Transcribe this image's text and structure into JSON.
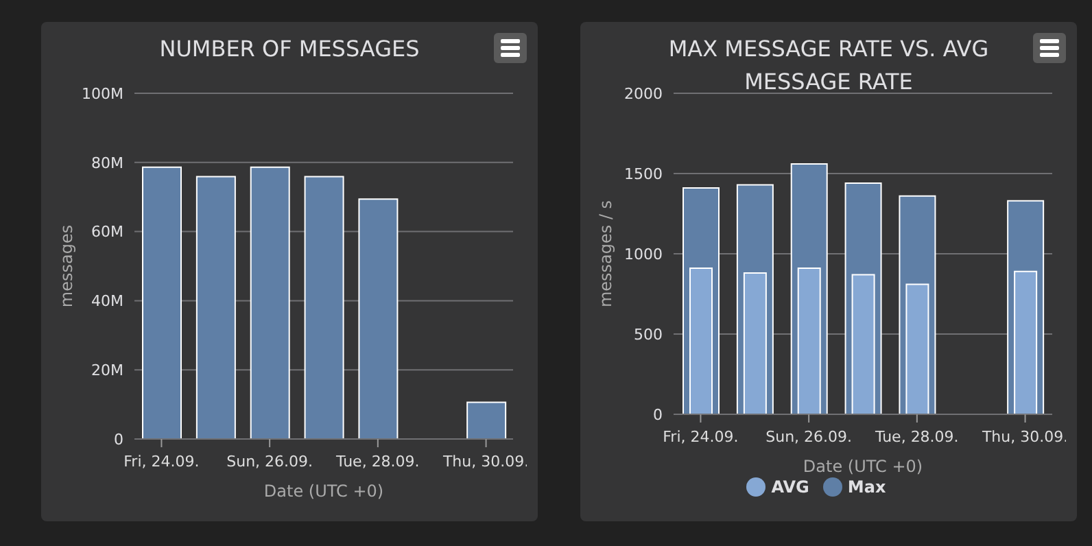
{
  "chart_data": [
    {
      "type": "bar",
      "title": "NUMBER OF MESSAGES",
      "xlabel": "Date (UTC +0)",
      "ylabel": "messages",
      "categories": [
        "Fri, 24.09.",
        null,
        "Sun, 26.09.",
        null,
        "Tue, 28.09.",
        null,
        "Thu, 30.09."
      ],
      "series": [
        {
          "color": "#5f7fa6",
          "values": [
            78.6,
            75.9,
            78.6,
            75.9,
            69.4,
            null,
            10.6
          ]
        }
      ],
      "ylim": [
        0,
        100
      ],
      "yticks": [
        {
          "value": 0,
          "label": "0"
        },
        {
          "value": 20,
          "label": "20M"
        },
        {
          "value": 40,
          "label": "40M"
        },
        {
          "value": 60,
          "label": "60M"
        },
        {
          "value": 80,
          "label": "80M"
        },
        {
          "value": 100,
          "label": "100M"
        }
      ],
      "grid": "y",
      "legend": false
    },
    {
      "type": "bar",
      "title": "MAX MESSAGE RATE VS. AVG MESSAGE RATE",
      "xlabel": "Date (UTC +0)",
      "ylabel": "messages / s",
      "categories": [
        "Fri, 24.09.",
        null,
        "Sun, 26.09.",
        null,
        "Tue, 28.09.",
        null,
        "Thu, 30.09."
      ],
      "series": [
        {
          "name": "Max",
          "color": "#5f7fa6",
          "values": [
            1410,
            1430,
            1560,
            1440,
            1360,
            null,
            1330
          ]
        },
        {
          "name": "AVG",
          "color": "#86a8d4",
          "values": [
            910,
            880,
            910,
            870,
            810,
            null,
            890
          ]
        }
      ],
      "ylim": [
        0,
        2000
      ],
      "yticks": [
        0,
        500,
        1000,
        1500,
        2000
      ],
      "grid": "y",
      "legend": "bottom"
    }
  ]
}
